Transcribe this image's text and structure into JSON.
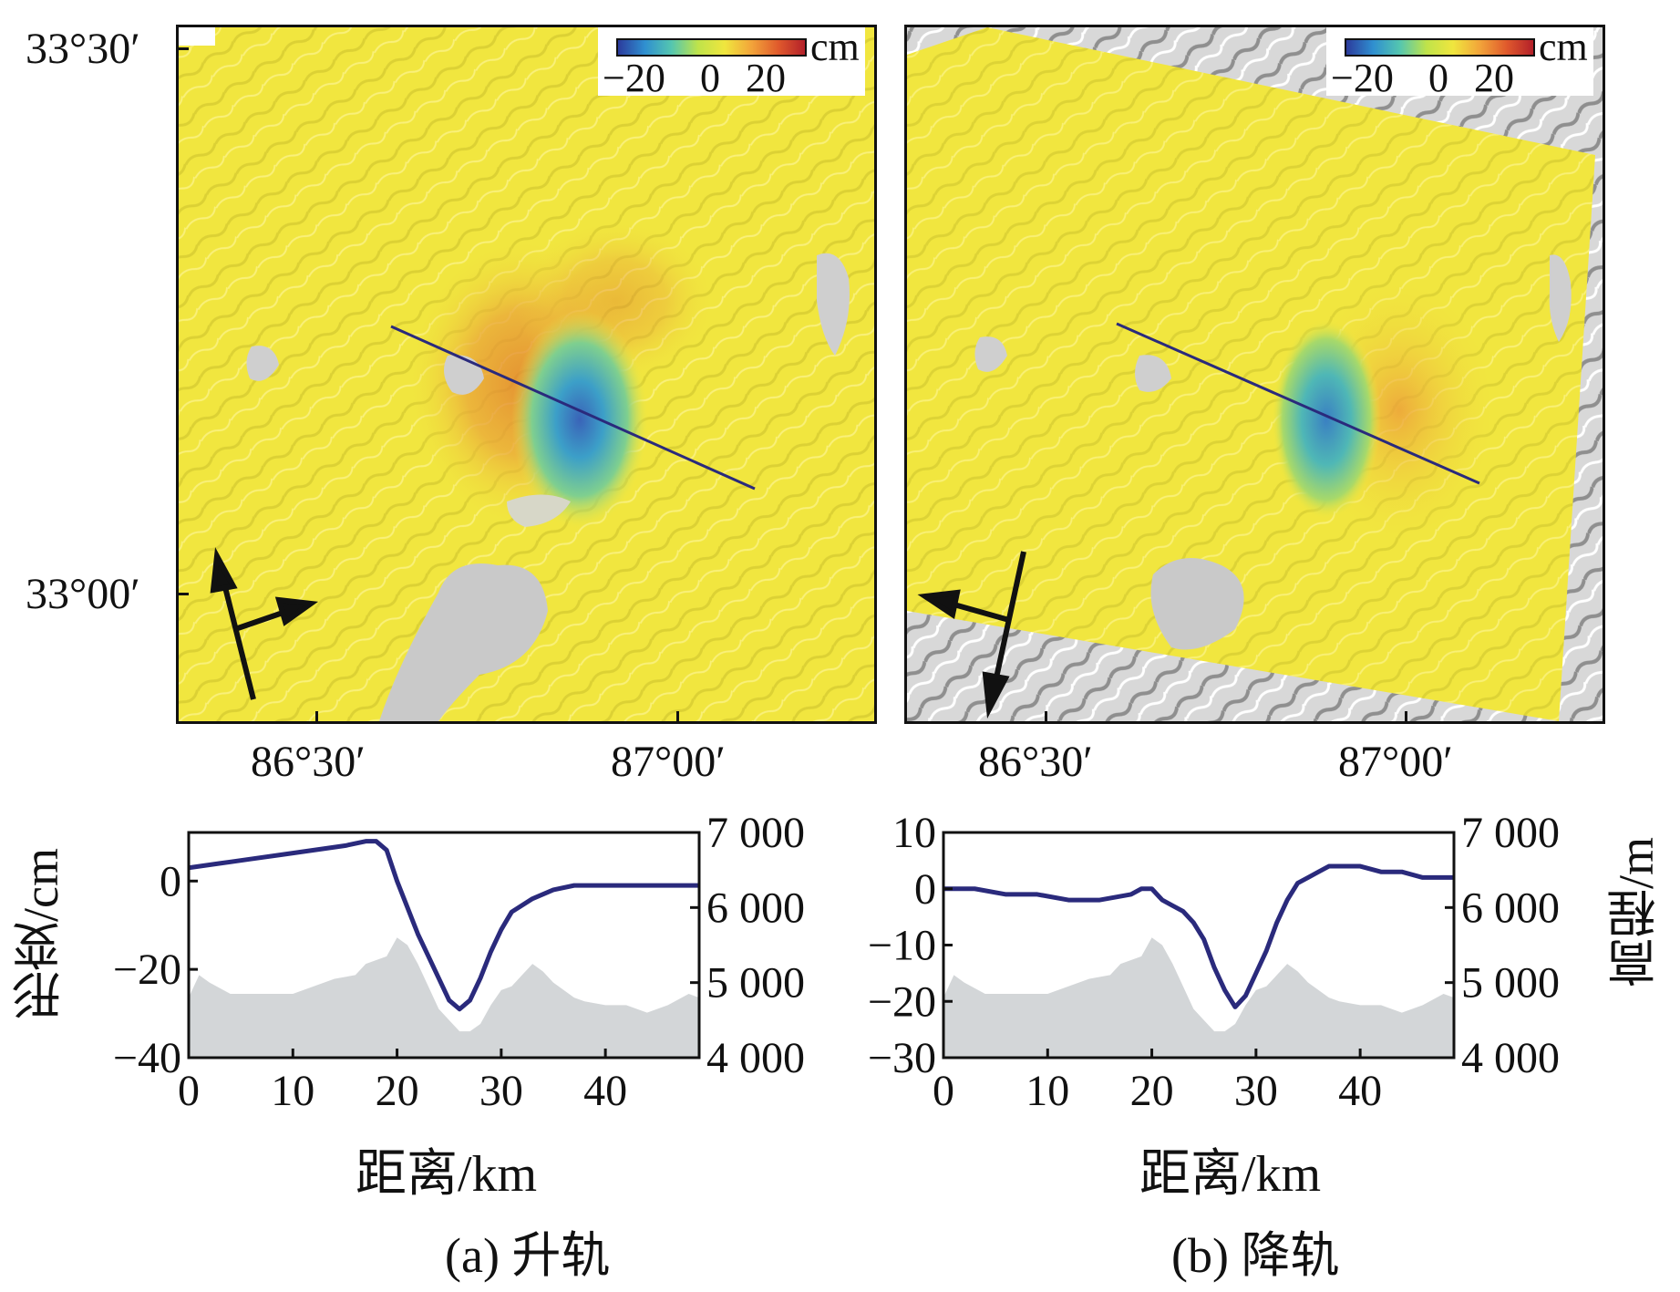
{
  "maps": [
    {
      "id": "ascending",
      "lat_labels": [
        "33°30′",
        "33°00′"
      ],
      "lon_labels": [
        "86°30′",
        "87°00′"
      ],
      "colorbar": {
        "unit": "cm",
        "ticks": [
          "−20",
          "0",
          "20"
        ]
      }
    },
    {
      "id": "descending",
      "lon_labels": [
        "86°30′",
        "87°00′"
      ],
      "colorbar": {
        "unit": "cm",
        "ticks": [
          "−20",
          "0",
          "20"
        ]
      }
    }
  ],
  "colors": {
    "profile_line": "#2a2a7c",
    "terrain_fill": "#d3d6d8",
    "deform_yellow": "#f1e63f"
  },
  "chart_data": [
    {
      "type": "line",
      "caption": "(a) 升轨",
      "xlabel": "距离/km",
      "ylabel": "形变/cm",
      "y2label": "",
      "xlim": [
        0,
        49
      ],
      "ylim": [
        -40,
        11
      ],
      "y2lim": [
        4000,
        7000
      ],
      "xticks": [
        "0",
        "10",
        "20",
        "30",
        "40"
      ],
      "yticks": [
        "0",
        "−20",
        "−40"
      ],
      "y2ticks": [
        "7 000",
        "6 000",
        "5 000",
        "4 000"
      ],
      "deformation": {
        "x": [
          0,
          3,
          6,
          9,
          12,
          15,
          17,
          18,
          19,
          20,
          21,
          22,
          23,
          24,
          25,
          26,
          27,
          28,
          29,
          30,
          31,
          33,
          35,
          37,
          40,
          43,
          46,
          49
        ],
        "y": [
          3,
          4,
          5,
          6,
          7,
          8,
          9,
          9,
          7,
          0,
          -6,
          -12,
          -17,
          -22,
          -27,
          -29,
          -27,
          -22,
          -16,
          -11,
          -7,
          -4,
          -2,
          -1,
          -1,
          -1,
          -1,
          -1
        ]
      },
      "elevation": {
        "x": [
          0,
          1,
          2,
          4,
          6,
          8,
          10,
          12,
          14,
          16,
          17,
          18,
          19,
          20,
          21,
          22,
          23,
          24,
          25,
          26,
          27,
          28,
          29,
          30,
          31,
          32,
          33,
          34,
          35,
          36,
          37,
          38,
          40,
          42,
          44,
          46,
          48,
          49
        ],
        "y": [
          4800,
          5100,
          5000,
          4850,
          4850,
          4850,
          4850,
          4950,
          5050,
          5100,
          5250,
          5300,
          5350,
          5600,
          5500,
          5250,
          4950,
          4650,
          4500,
          4350,
          4350,
          4450,
          4700,
          4900,
          4950,
          5100,
          5250,
          5150,
          5000,
          4900,
          4800,
          4750,
          4700,
          4700,
          4600,
          4700,
          4850,
          4800
        ]
      }
    },
    {
      "type": "line",
      "caption": "(b) 降轨",
      "xlabel": "距离/km",
      "ylabel": "",
      "y2label": "高程/m",
      "xlim": [
        0,
        49
      ],
      "ylim": [
        -30,
        10
      ],
      "y2lim": [
        4000,
        7000
      ],
      "xticks": [
        "0",
        "10",
        "20",
        "30",
        "40"
      ],
      "yticks": [
        "10",
        "0",
        "−10",
        "−20",
        "−30"
      ],
      "y2ticks": [
        "7 000",
        "6 000",
        "5 000",
        "4 000"
      ],
      "deformation": {
        "x": [
          0,
          3,
          6,
          9,
          12,
          15,
          18,
          19,
          20,
          21,
          22,
          23,
          24,
          25,
          26,
          27,
          28,
          29,
          30,
          31,
          32,
          33,
          34,
          35,
          36,
          37,
          38,
          40,
          42,
          44,
          46,
          49
        ],
        "y": [
          0,
          0,
          -1,
          -1,
          -2,
          -2,
          -1,
          0,
          0,
          -2,
          -3,
          -4,
          -6,
          -9,
          -14,
          -18,
          -21,
          -19,
          -15,
          -11,
          -6,
          -2,
          1,
          2,
          3,
          4,
          4,
          4,
          3,
          3,
          2,
          2
        ]
      },
      "elevation": {
        "x": [
          0,
          1,
          2,
          4,
          6,
          8,
          10,
          12,
          14,
          16,
          17,
          18,
          19,
          20,
          21,
          22,
          23,
          24,
          25,
          26,
          27,
          28,
          29,
          30,
          31,
          32,
          33,
          34,
          35,
          36,
          37,
          38,
          40,
          42,
          44,
          46,
          48,
          49
        ],
        "y": [
          4800,
          5100,
          5000,
          4850,
          4850,
          4850,
          4850,
          4950,
          5050,
          5100,
          5250,
          5300,
          5350,
          5600,
          5500,
          5250,
          4950,
          4650,
          4500,
          4350,
          4350,
          4450,
          4700,
          4900,
          4950,
          5100,
          5250,
          5150,
          5000,
          4900,
          4800,
          4750,
          4700,
          4700,
          4600,
          4700,
          4850,
          4800
        ]
      }
    }
  ]
}
